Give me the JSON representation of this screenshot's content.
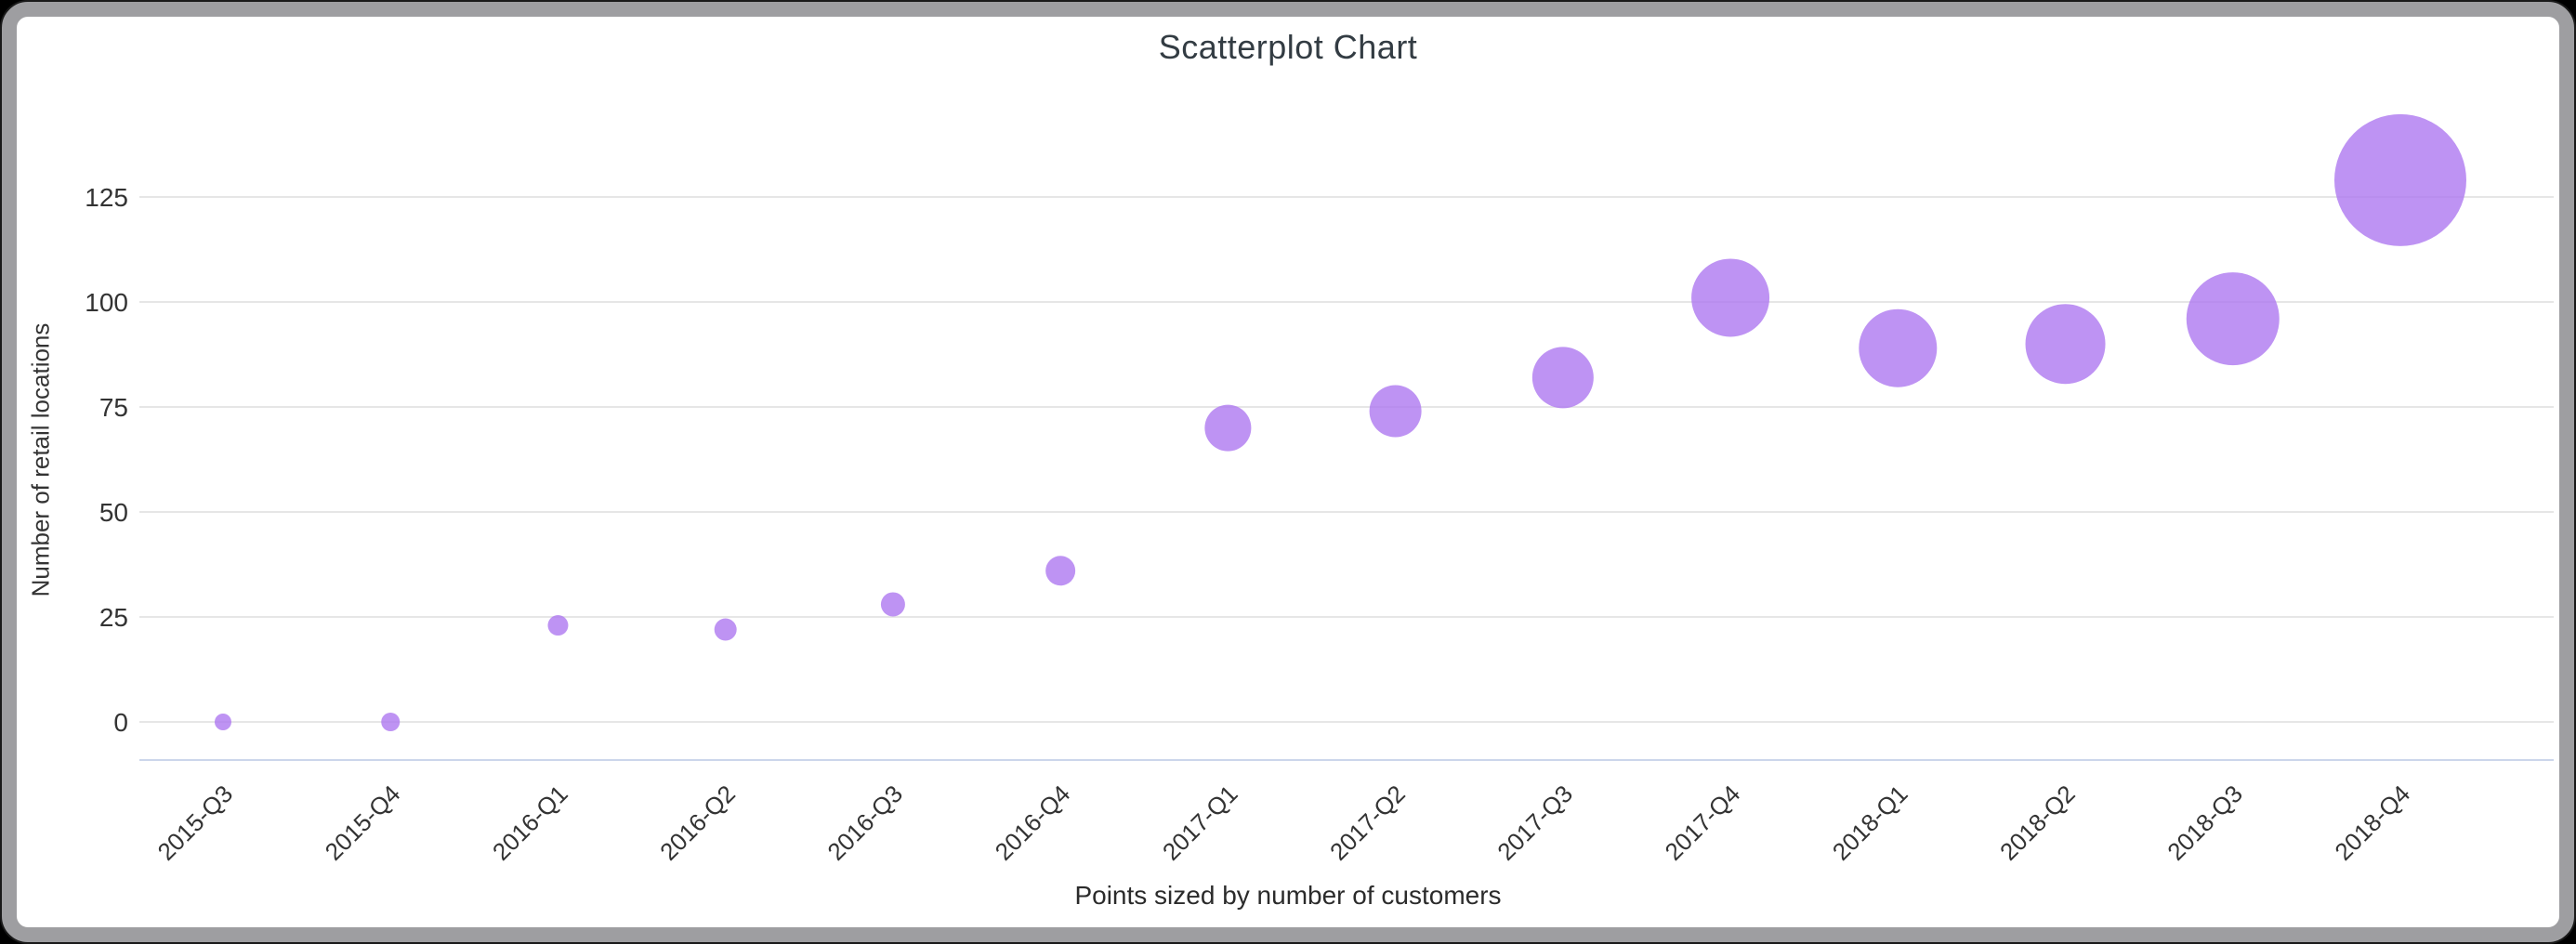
{
  "page": {
    "background_color": "#000000",
    "card_border_color": "#9e9ea1",
    "card_background": "#ffffff"
  },
  "chart": {
    "title": "Scatterplot Chart",
    "y_axis_title": "Number of retail locations",
    "caption": "Points sized by number of customers"
  },
  "chart_data": {
    "type": "scatter",
    "title": "Scatterplot Chart",
    "xlabel": "Points sized by number of customers",
    "ylabel": "Number of retail locations",
    "categories": [
      "2015-Q3",
      "2015-Q4",
      "2016-Q1",
      "2016-Q2",
      "2016-Q3",
      "2016-Q4",
      "2017-Q1",
      "2017-Q2",
      "2017-Q3",
      "2017-Q4",
      "2018-Q1",
      "2018-Q2",
      "2018-Q3",
      "2018-Q4"
    ],
    "series": [
      {
        "name": "Number of retail locations",
        "values": [
          0,
          0,
          23,
          22,
          28,
          36,
          70,
          74,
          82,
          101,
          89,
          90,
          96,
          129
        ],
        "point_radius_px": [
          9,
          10,
          11,
          12,
          13,
          16,
          25,
          28,
          33,
          42,
          42,
          43,
          50,
          71
        ]
      }
    ],
    "size_encoding": "number of customers",
    "y_ticks": [
      0,
      25,
      50,
      75,
      100,
      125
    ],
    "ylim": [
      0,
      140
    ],
    "grid": true,
    "legend_position": "none",
    "x_label_rotation_deg": -45,
    "colors": {
      "bubble": "#ac75ef",
      "bubble_opacity": 0.78,
      "gridline": "#e6e6e6",
      "axis_line": "#ccd6eb",
      "tick_label": "#333333",
      "title_text": "#333c43"
    }
  }
}
